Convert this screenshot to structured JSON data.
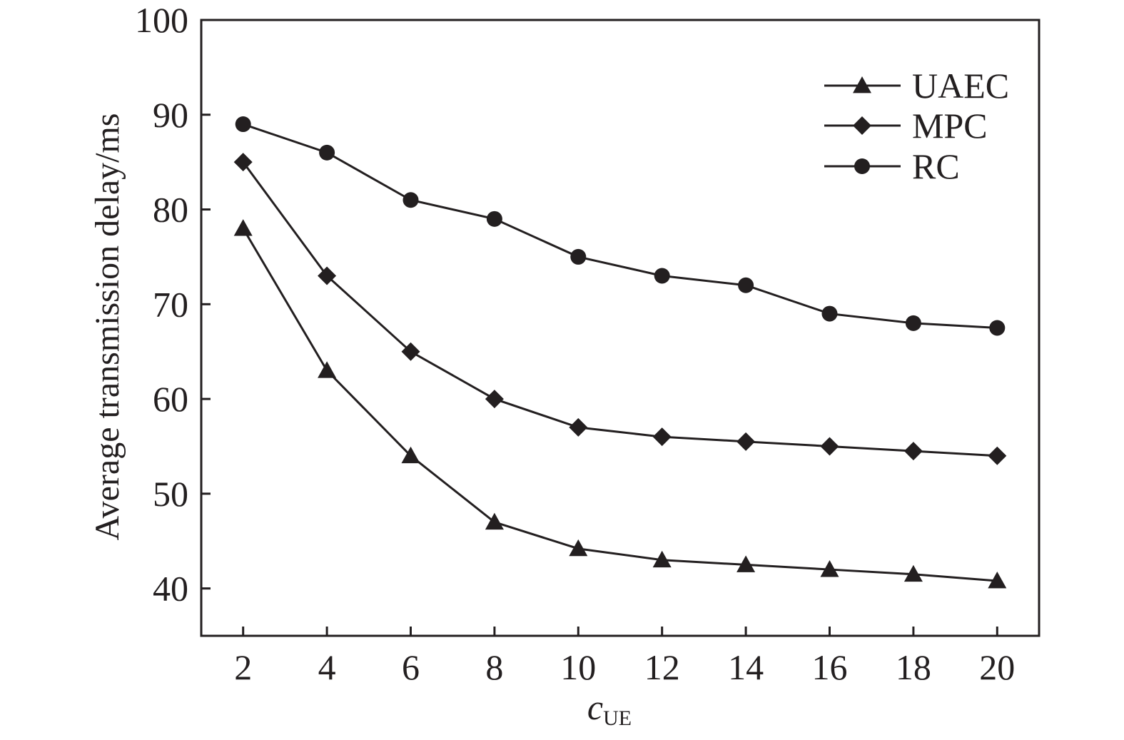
{
  "chart_data": {
    "type": "line",
    "x": [
      2,
      4,
      6,
      8,
      10,
      12,
      14,
      16,
      18,
      20
    ],
    "xlabel_main": "c",
    "xlabel_sub": "UE",
    "ylabel": "Average transmission delay/ms",
    "xlim": [
      1,
      21
    ],
    "ylim": [
      35,
      100
    ],
    "x_ticks": [
      2,
      4,
      6,
      8,
      10,
      12,
      14,
      16,
      18,
      20
    ],
    "y_ticks": [
      40,
      50,
      60,
      70,
      80,
      90,
      100
    ],
    "grid": false,
    "legend_position": "top-right",
    "series": [
      {
        "name": "UAEC",
        "marker": "triangle",
        "values": [
          78,
          63,
          54,
          47,
          44.2,
          43,
          42.5,
          42,
          41.5,
          40.8
        ]
      },
      {
        "name": "MPC",
        "marker": "diamond",
        "values": [
          85,
          73,
          65,
          60,
          57,
          56,
          55.5,
          55,
          54.5,
          54
        ]
      },
      {
        "name": "RC",
        "marker": "circle",
        "values": [
          89,
          86,
          81,
          79,
          75,
          73,
          72,
          69,
          68,
          67.5
        ]
      }
    ],
    "line_color": "#231f20"
  }
}
